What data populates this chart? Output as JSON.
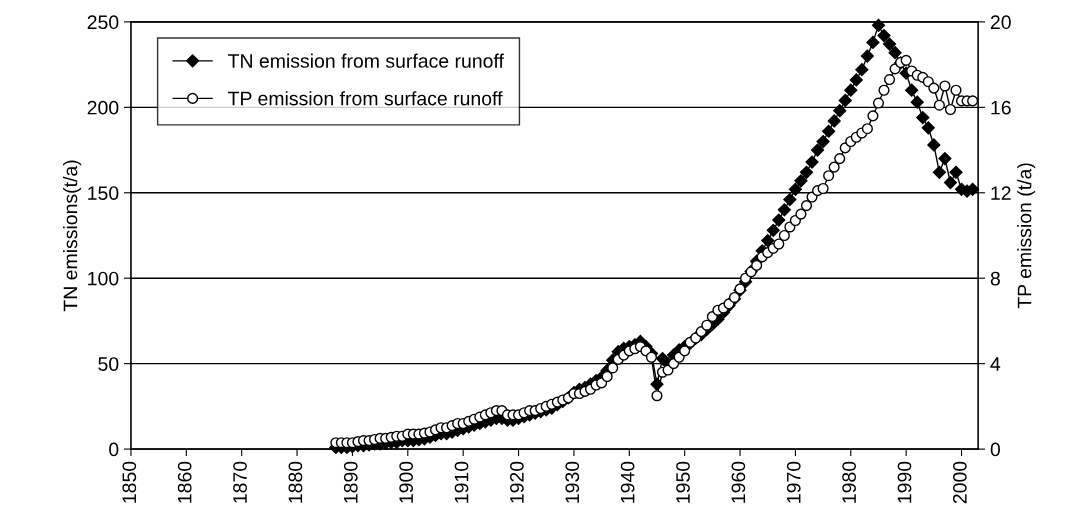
{
  "chart_data": {
    "type": "line",
    "x": [
      1887,
      1888,
      1889,
      1890,
      1891,
      1892,
      1893,
      1894,
      1895,
      1896,
      1897,
      1898,
      1899,
      1900,
      1901,
      1902,
      1903,
      1904,
      1905,
      1906,
      1907,
      1908,
      1909,
      1910,
      1911,
      1912,
      1913,
      1914,
      1915,
      1916,
      1917,
      1918,
      1919,
      1920,
      1921,
      1922,
      1923,
      1924,
      1925,
      1926,
      1927,
      1928,
      1929,
      1930,
      1931,
      1932,
      1933,
      1934,
      1935,
      1936,
      1937,
      1938,
      1939,
      1940,
      1941,
      1942,
      1943,
      1944,
      1945,
      1946,
      1947,
      1948,
      1949,
      1950,
      1951,
      1952,
      1953,
      1954,
      1955,
      1956,
      1957,
      1958,
      1959,
      1960,
      1961,
      1962,
      1963,
      1964,
      1965,
      1966,
      1967,
      1968,
      1969,
      1970,
      1971,
      1972,
      1973,
      1974,
      1975,
      1976,
      1977,
      1978,
      1979,
      1980,
      1981,
      1982,
      1983,
      1984,
      1985,
      1986,
      1987,
      1988,
      1989,
      1990,
      1991,
      1992,
      1993,
      1994,
      1995,
      1996,
      1997,
      1998,
      1999,
      2000,
      2001,
      2002
    ],
    "series": [
      {
        "name": "TN emission from surface runoff",
        "color": "#000000",
        "marker": "diamond",
        "values": [
          1,
          1,
          1,
          1.5,
          2,
          2,
          2.5,
          3,
          3,
          3.5,
          4,
          4,
          5,
          5,
          5,
          5.5,
          6,
          7,
          8,
          9,
          9,
          10,
          11,
          12,
          13,
          14,
          15,
          16,
          17,
          18,
          18,
          17,
          17,
          18,
          19,
          20,
          21,
          22,
          23,
          24,
          26,
          28,
          30,
          33,
          35,
          36,
          38,
          40,
          42,
          46,
          52,
          57,
          59,
          60,
          61,
          63,
          60,
          56,
          38,
          53,
          50,
          55,
          58,
          60,
          62,
          65,
          67,
          70,
          73,
          76,
          80,
          84,
          88,
          93,
          98,
          104,
          110,
          116,
          122,
          128,
          134,
          140,
          146,
          152,
          157,
          162,
          168,
          175,
          180,
          186,
          192,
          198,
          204,
          210,
          216,
          222,
          230,
          238,
          248,
          242,
          237,
          232,
          226,
          220,
          210,
          203,
          194,
          188,
          178,
          162,
          170,
          156,
          162,
          152,
          151,
          152
        ]
      },
      {
        "name": "TP emission from surface runoff",
        "color": "#000000",
        "marker": "circle",
        "axis": "y2",
        "values": [
          0.3,
          0.3,
          0.3,
          0.3,
          0.35,
          0.4,
          0.4,
          0.45,
          0.5,
          0.5,
          0.55,
          0.6,
          0.6,
          0.7,
          0.7,
          0.7,
          0.75,
          0.8,
          0.9,
          1.0,
          1.0,
          1.1,
          1.2,
          1.2,
          1.3,
          1.4,
          1.5,
          1.6,
          1.7,
          1.8,
          1.8,
          1.6,
          1.6,
          1.6,
          1.7,
          1.8,
          1.8,
          1.9,
          2.0,
          2.1,
          2.2,
          2.3,
          2.4,
          2.6,
          2.6,
          2.7,
          2.8,
          3.0,
          3.1,
          3.4,
          3.8,
          4.2,
          4.4,
          4.6,
          4.7,
          4.8,
          4.6,
          4.3,
          2.5,
          3.6,
          3.7,
          4.0,
          4.3,
          4.6,
          5.0,
          5.2,
          5.5,
          5.8,
          6.2,
          6.5,
          6.6,
          6.8,
          7.1,
          7.5,
          8.0,
          8.3,
          8.6,
          9.0,
          9.2,
          9.4,
          9.6,
          10.0,
          10.4,
          10.7,
          11.0,
          11.4,
          11.8,
          12.1,
          12.2,
          12.8,
          13.2,
          13.6,
          14.1,
          14.4,
          14.6,
          14.8,
          15.0,
          15.6,
          16.2,
          16.8,
          17.3,
          17.8,
          18.1,
          18.2,
          17.7,
          17.5,
          17.4,
          17.2,
          16.9,
          16.1,
          17.0,
          15.9,
          16.8,
          16.3,
          16.3,
          16.3
        ]
      }
    ],
    "ylabel": "TN emissions(t/a)",
    "y2label": "TP emission (t/a)",
    "xlim": [
      1850,
      2003
    ],
    "xticks": [
      1850,
      1860,
      1870,
      1880,
      1890,
      1900,
      1910,
      1920,
      1930,
      1940,
      1950,
      1960,
      1970,
      1980,
      1990,
      2000
    ],
    "ylim": [
      0,
      250
    ],
    "yticks": [
      0,
      50,
      100,
      150,
      200,
      250
    ],
    "y2lim": [
      0,
      20
    ],
    "y2ticks": [
      0,
      4,
      8,
      12,
      16,
      20
    ],
    "grid": "y",
    "legend": "top left",
    "line_style": "solid"
  }
}
